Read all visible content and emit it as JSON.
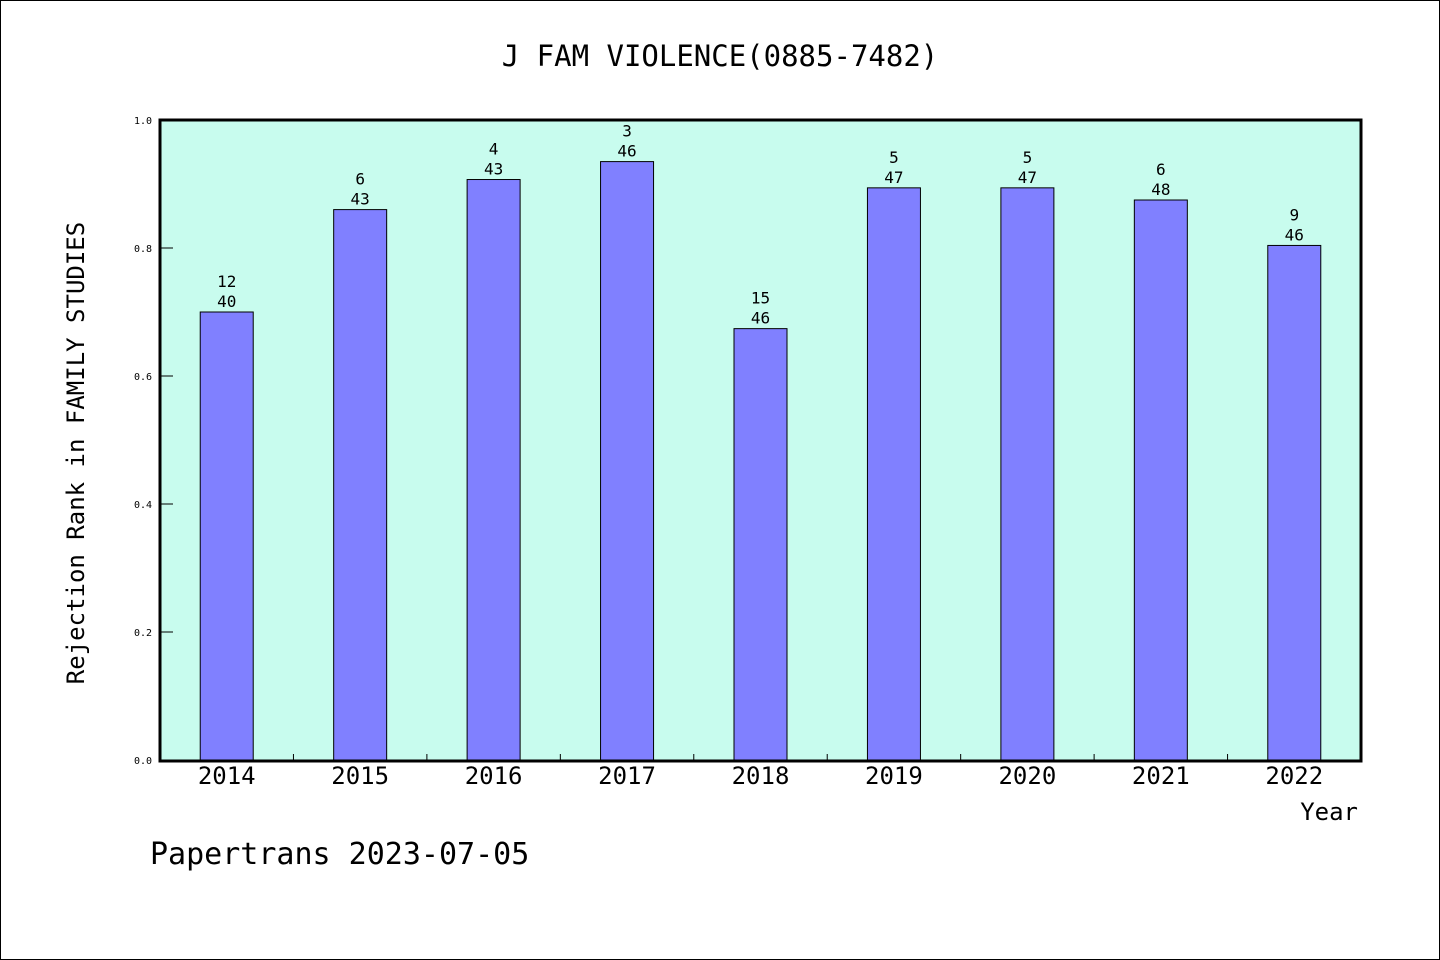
{
  "chart_data": {
    "type": "bar",
    "title": "J FAM VIOLENCE(0885-7482)",
    "xlabel": "Year",
    "ylabel": "Rejection Rank in FAMILY STUDIES",
    "ylim": [
      0,
      1
    ],
    "yticks": [
      "0.0",
      "0.2",
      "0.4",
      "0.6",
      "0.8",
      "1.0"
    ],
    "categories": [
      "2014",
      "2015",
      "2016",
      "2017",
      "2018",
      "2019",
      "2020",
      "2021",
      "2022"
    ],
    "values": [
      0.7,
      0.86,
      0.907,
      0.935,
      0.674,
      0.894,
      0.894,
      0.875,
      0.804
    ],
    "ranks": [
      "12",
      "6",
      "4",
      "3",
      "15",
      "5",
      "5",
      "6",
      "9"
    ],
    "totals": [
      "40",
      "43",
      "43",
      "46",
      "46",
      "47",
      "47",
      "48",
      "46"
    ],
    "grid": false,
    "colors": {
      "bar": "#8080ff",
      "plot_bg": "#c8fcee"
    }
  },
  "footer": "Papertrans 2023-07-05"
}
